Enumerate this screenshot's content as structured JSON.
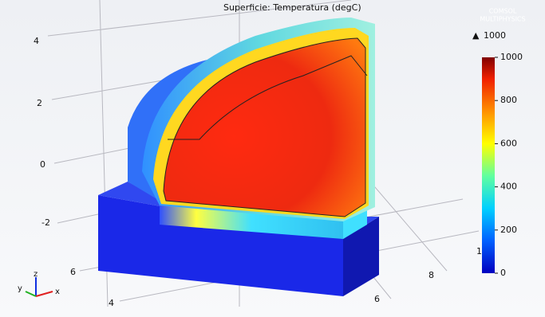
{
  "title": "Superficie: Temperatura (degC)",
  "logo": [
    "COMSOL",
    "MULTIPHYSICS"
  ],
  "max_marker": "▲",
  "max_value": 1000,
  "colorbar": {
    "ticks": [
      0,
      200,
      400,
      600,
      800,
      1000
    ],
    "range": [
      0,
      1000
    ]
  },
  "axes": {
    "z_ticks": [
      4,
      2,
      0,
      -2
    ],
    "y_ticks": [
      6,
      4
    ],
    "x_ticks": [
      8,
      6
    ],
    "cut_tick": "1"
  },
  "triad": [
    "z",
    "y",
    "x"
  ]
}
